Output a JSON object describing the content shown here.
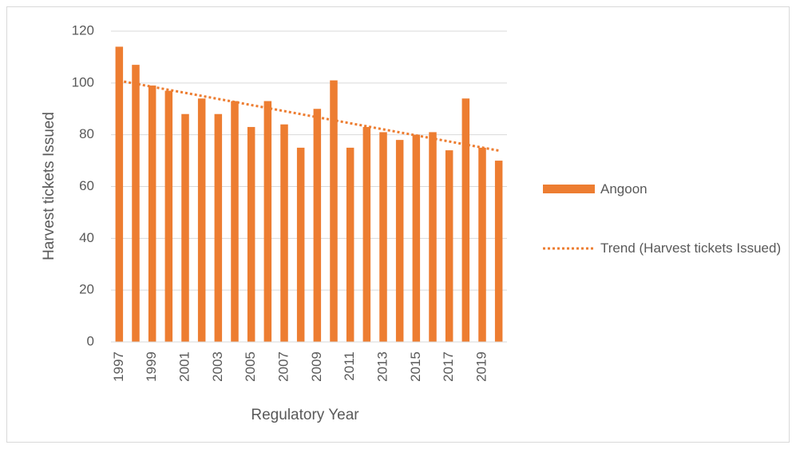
{
  "chart_data": {
    "type": "bar",
    "x_label": "Regulatory Year",
    "y_label": "Harvest tickets Issued",
    "categories": [
      "1997",
      null,
      "1999",
      null,
      "2001",
      null,
      "2003",
      null,
      "2005",
      null,
      "2007",
      null,
      "2009",
      null,
      "2011",
      null,
      "2013",
      null,
      "2015",
      null,
      "2017",
      null,
      "2019",
      null
    ],
    "series": [
      {
        "name": "Angoon",
        "color": "#ed7d31",
        "values": [
          114,
          107,
          99,
          97,
          88,
          94,
          88,
          93,
          83,
          93,
          84,
          75,
          90,
          101,
          75,
          83,
          81,
          78,
          80,
          81,
          74,
          94,
          75,
          70
        ]
      }
    ],
    "trendline": {
      "name": "Trend (Harvest tickets Issued)",
      "color": "#ed7d31",
      "style": "dotted"
    },
    "ylim": [
      0,
      120
    ],
    "yticks": [
      0,
      20,
      40,
      60,
      80,
      100,
      120
    ],
    "grid": true,
    "legend": "right"
  }
}
